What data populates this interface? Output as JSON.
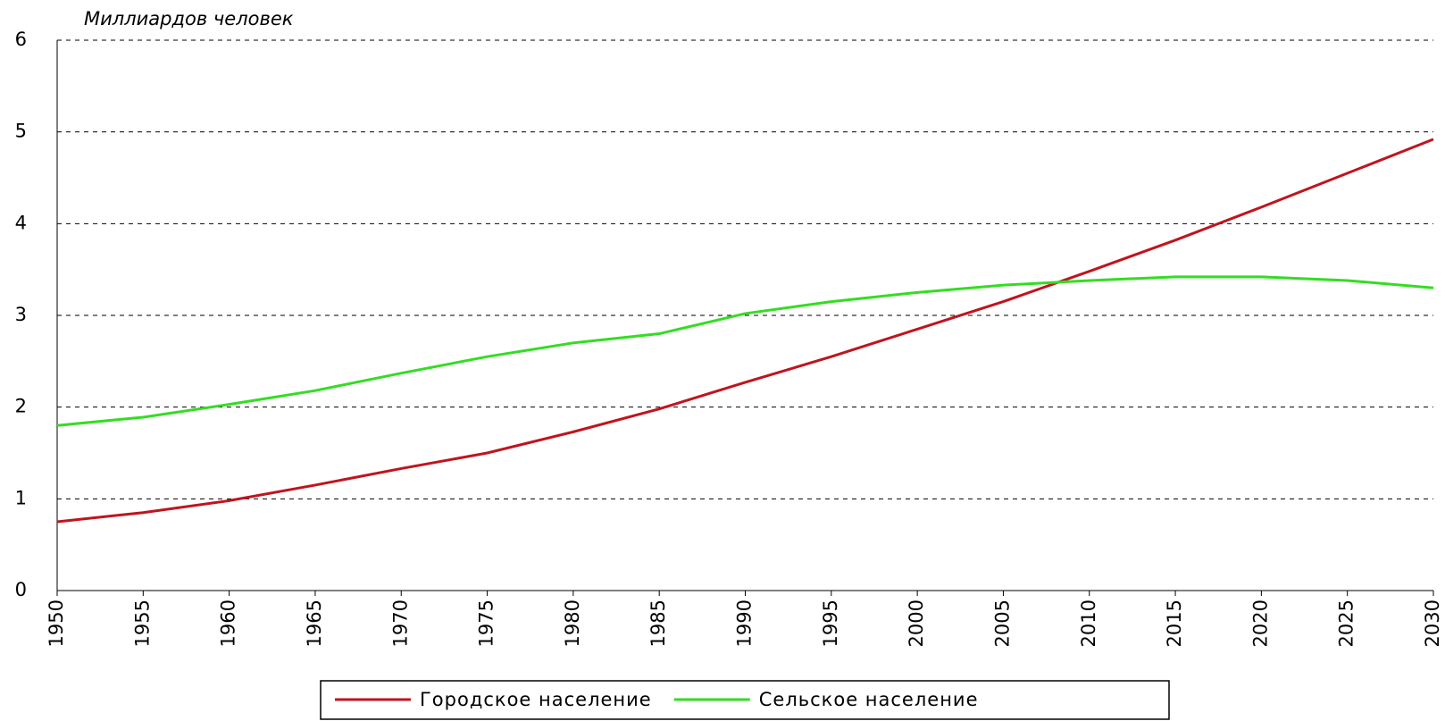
{
  "chart_data": {
    "type": "line",
    "y_label": "Миллиардов человек",
    "x": [
      1950,
      1955,
      1960,
      1965,
      1970,
      1975,
      1980,
      1985,
      1990,
      1995,
      2000,
      2005,
      2010,
      2015,
      2020,
      2025,
      2030
    ],
    "series": [
      {
        "name": "Городское население",
        "color": "#c0141e",
        "values": [
          0.75,
          0.85,
          0.98,
          1.15,
          1.33,
          1.5,
          1.73,
          1.98,
          2.27,
          2.55,
          2.85,
          3.15,
          3.48,
          3.82,
          4.18,
          4.55,
          4.92
        ]
      },
      {
        "name": "Сельское население",
        "color": "#33dd22",
        "values": [
          1.8,
          1.89,
          2.03,
          2.18,
          2.37,
          2.55,
          2.7,
          2.8,
          3.02,
          3.15,
          3.25,
          3.33,
          3.38,
          3.42,
          3.42,
          3.38,
          3.3
        ]
      }
    ],
    "xlim": [
      1950,
      2030
    ],
    "xticks": [
      1950,
      1955,
      1960,
      1965,
      1970,
      1975,
      1980,
      1985,
      1990,
      1995,
      2000,
      2005,
      2010,
      2015,
      2020,
      2025,
      2030
    ],
    "ylim": [
      0,
      6
    ],
    "yticks": [
      0,
      1,
      2,
      3,
      4,
      5,
      6
    ],
    "grid": true,
    "legend": "bottom"
  }
}
